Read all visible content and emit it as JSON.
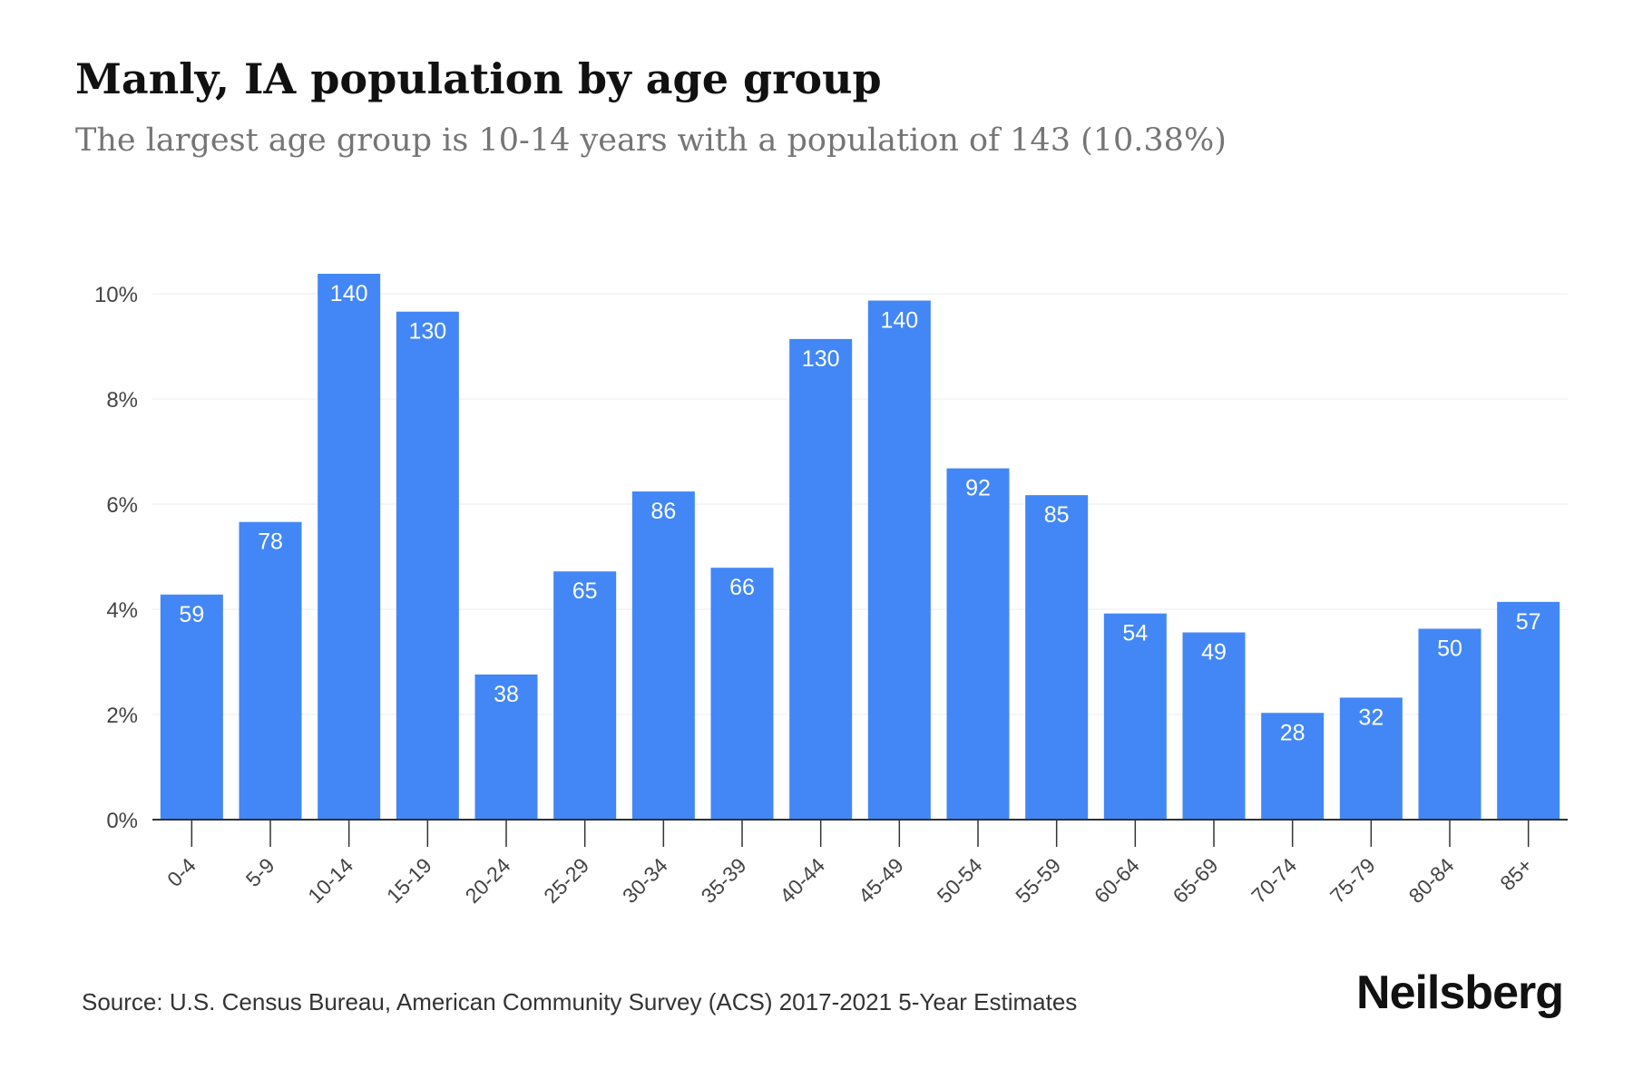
{
  "title": "Manly, IA population by age group",
  "subtitle": "The largest age group is 10-14 years with a population of 143 (10.38%)",
  "source": "Source: U.S. Census Bureau, American Community Survey (ACS) 2017-2021 5-Year Estimates",
  "brand": "Neilsberg",
  "colors": {
    "bar": "#4287f5",
    "bar_label": "#ffffff",
    "grid": "#ececec",
    "axis": "#333333",
    "tick_text": "#444444"
  },
  "chart_data": {
    "type": "bar",
    "categories": [
      "0-4",
      "5-9",
      "10-14",
      "15-19",
      "20-24",
      "25-29",
      "30-34",
      "35-39",
      "40-44",
      "45-49",
      "50-54",
      "55-59",
      "60-64",
      "65-69",
      "70-74",
      "75-79",
      "80-84",
      "85+"
    ],
    "values": [
      4.28,
      5.66,
      10.38,
      9.66,
      2.76,
      4.72,
      6.24,
      4.79,
      9.14,
      9.87,
      6.68,
      6.17,
      3.92,
      3.56,
      2.03,
      2.32,
      3.63,
      4.14
    ],
    "data_labels": [
      "59",
      "78",
      "140",
      "130",
      "38",
      "65",
      "86",
      "66",
      "130",
      "140",
      "92",
      "85",
      "54",
      "49",
      "28",
      "32",
      "50",
      "57"
    ],
    "y_ticks": [
      "0%",
      "2%",
      "4%",
      "6%",
      "8%",
      "10%"
    ],
    "y_tick_values": [
      0,
      2,
      4,
      6,
      8,
      10
    ],
    "ylim": [
      0,
      10.38
    ],
    "grid": true,
    "legend": "none"
  }
}
